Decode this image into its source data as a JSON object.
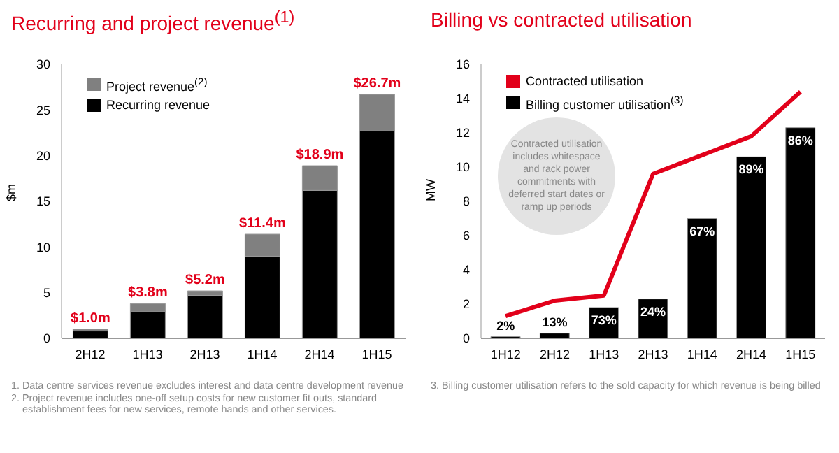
{
  "chart_data": [
    {
      "type": "bar",
      "stacked": true,
      "title": "Recurring and project revenue$^{(1)}$",
      "ylabel": "$m",
      "categories": [
        "2H12",
        "1H13",
        "2H13",
        "1H14",
        "2H14",
        "1H15"
      ],
      "series": [
        {
          "name": "Recurring revenue",
          "color": "#000000",
          "values": [
            0.8,
            2.9,
            4.7,
            9.0,
            16.2,
            22.7
          ]
        },
        {
          "name": "Project revenue$^{(2)}$",
          "color": "#808080",
          "values": [
            0.2,
            0.9,
            0.5,
            2.4,
            2.7,
            4.0
          ]
        }
      ],
      "ylim": [
        0,
        30
      ],
      "yticks": [
        0,
        5,
        10,
        15,
        20,
        25,
        30
      ],
      "totals": [
        "$1.0m",
        "$3.8m",
        "$5.2m",
        "$11.4m",
        "$18.9m",
        "$26.7m"
      ],
      "legend": "top left",
      "annotations": [
        "1.  Data centre services revenue excludes interest and data centre development revenue",
        "2.  Project revenue includes one-off setup costs for new customer fit outs, standard establishment fees for new services, remote hands and other services."
      ]
    },
    {
      "type": "bar",
      "title": "Billing vs contracted utilisation",
      "ylabel": "MW",
      "categories": [
        "1H12",
        "2H12",
        "1H13",
        "2H13",
        "1H14",
        "2H14",
        "1H15"
      ],
      "series": [
        {
          "name": "Contracted utilisation",
          "type": "line",
          "color": "#e2001a",
          "values": [
            1.3,
            2.2,
            2.5,
            9.6,
            10.7,
            11.8,
            14.4
          ]
        },
        {
          "name": "Billing customer utilisation$^{(3)}$",
          "color": "#000000",
          "values": [
            0.1,
            0.3,
            1.8,
            2.3,
            7.0,
            10.6,
            12.3
          ]
        }
      ],
      "ylim": [
        0,
        16
      ],
      "yticks": [
        0,
        2,
        4,
        6,
        8,
        10,
        12,
        14,
        16
      ],
      "marker": "none",
      "legend": "top left",
      "annotations": [
        {
          "text": "2%",
          "x": "1H12",
          "y": 0.1
        },
        {
          "text": "13%",
          "x": "2H12",
          "y": 0.3
        },
        {
          "text": "73%",
          "x": "1H13",
          "y": 1.8
        },
        {
          "text": "24%",
          "x": "2H13",
          "y": 2.3
        },
        {
          "text": "67%",
          "x": "1H14",
          "y": 7.0
        },
        {
          "text": "89%",
          "x": "2H14",
          "y": 10.6
        },
        {
          "text": "86%",
          "x": "1H15",
          "y": 12.3
        },
        "Contracted utilisation includes whitespace and rack power commitments with deferred start dates or ramp up periods",
        "3.  Billing customer utilisation refers to the sold capacity for which revenue is being billed"
      ]
    }
  ]
}
